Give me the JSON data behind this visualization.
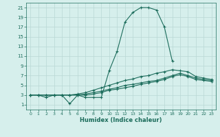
{
  "background_color": "#d6efec",
  "line_color": "#1a6b5a",
  "grid_color": "#b8d8d4",
  "xlabel": "Humidex (Indice chaleur)",
  "xlim": [
    -0.5,
    23.5
  ],
  "ylim": [
    0,
    22
  ],
  "xticks": [
    0,
    1,
    2,
    3,
    4,
    5,
    6,
    7,
    8,
    9,
    10,
    11,
    12,
    13,
    14,
    15,
    16,
    17,
    18,
    19,
    20,
    21,
    22,
    23
  ],
  "yticks": [
    1,
    3,
    5,
    7,
    9,
    11,
    13,
    15,
    17,
    19,
    21
  ],
  "series1_x": [
    0,
    1,
    2,
    3,
    4,
    5,
    6,
    7,
    8,
    9,
    10,
    11,
    12,
    13,
    14,
    15,
    16,
    17,
    18
  ],
  "series1_y": [
    3,
    3,
    2.5,
    3,
    3,
    1.2,
    3,
    2.5,
    2.5,
    2.5,
    8,
    12,
    18,
    20,
    21,
    21,
    20.5,
    17,
    10
  ],
  "series2_x": [
    0,
    1,
    2,
    3,
    4,
    5,
    6,
    7,
    8,
    9,
    10,
    11,
    12,
    13,
    14,
    15,
    16,
    17,
    18,
    19,
    20,
    21,
    22,
    23
  ],
  "series2_y": [
    3.0,
    3.0,
    3.0,
    3.0,
    3.0,
    3.0,
    3.2,
    3.5,
    4.0,
    4.5,
    5.0,
    5.5,
    6.0,
    6.3,
    6.8,
    7.0,
    7.5,
    7.8,
    8.2,
    8.0,
    7.8,
    6.8,
    6.5,
    6.2
  ],
  "series3_x": [
    0,
    1,
    2,
    3,
    4,
    5,
    6,
    7,
    8,
    9,
    10,
    11,
    12,
    13,
    14,
    15,
    16,
    17,
    18,
    19,
    20,
    21,
    22,
    23
  ],
  "series3_y": [
    3.0,
    3.0,
    3.0,
    3.0,
    3.0,
    3.0,
    3.0,
    3.2,
    3.5,
    3.8,
    4.2,
    4.5,
    5.0,
    5.2,
    5.5,
    5.8,
    6.0,
    6.5,
    7.0,
    7.5,
    7.0,
    6.5,
    6.2,
    6.0
  ],
  "series4_x": [
    0,
    1,
    2,
    3,
    4,
    5,
    6,
    7,
    8,
    9,
    10,
    11,
    12,
    13,
    14,
    15,
    16,
    17,
    18,
    19,
    20,
    21,
    22,
    23
  ],
  "series4_y": [
    3.0,
    3.0,
    3.0,
    3.0,
    3.0,
    3.0,
    3.0,
    3.0,
    3.2,
    3.5,
    4.0,
    4.2,
    4.5,
    4.8,
    5.2,
    5.5,
    5.8,
    6.2,
    6.8,
    7.2,
    6.8,
    6.2,
    6.0,
    5.8
  ]
}
